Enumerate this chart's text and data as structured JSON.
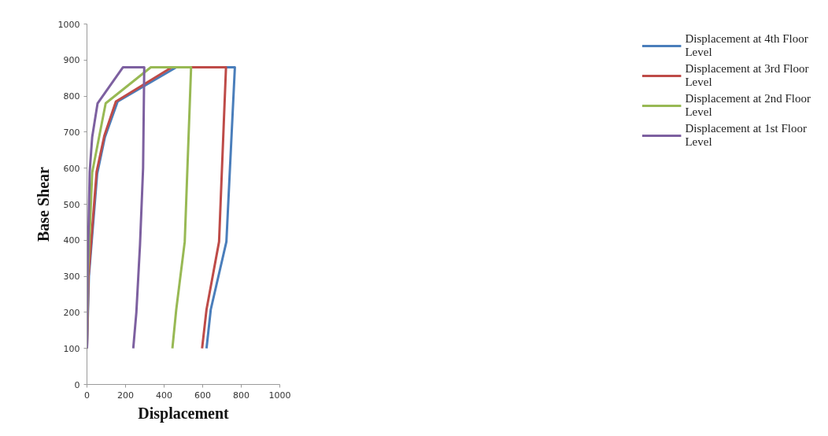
{
  "chart_data": {
    "type": "line",
    "xlabel": "Displacement",
    "ylabel": "Base Shear",
    "xlim": [
      0,
      1000
    ],
    "ylim": [
      0,
      1000
    ],
    "xticks": [
      0,
      200,
      400,
      600,
      800,
      1000
    ],
    "yticks": [
      0,
      100,
      200,
      300,
      400,
      500,
      600,
      700,
      800,
      900,
      1000
    ],
    "grid": false,
    "legend": "right",
    "marker": "none",
    "line_style": "solid",
    "series": [
      {
        "name": "Displacement at 4th Floor Level",
        "color": "#4a7ebb",
        "x": [
          0,
          10,
          53,
          93,
          159,
          463,
          767,
          723,
          642,
          620
        ],
        "values": [
          100,
          300,
          585,
          686,
          785,
          880,
          880,
          396,
          208,
          100
        ]
      },
      {
        "name": "Displacement at 3rd Floor Level",
        "color": "#be4b48",
        "x": [
          0,
          8,
          50,
          90,
          150,
          440,
          721,
          685,
          620,
          597
        ],
        "values": [
          100,
          300,
          590,
          690,
          785,
          880,
          880,
          396,
          208,
          100
        ]
      },
      {
        "name": "Displacement at 2nd Floor Level",
        "color": "#98b954",
        "x": [
          0,
          5,
          27,
          97,
          331,
          540,
          507,
          463,
          443
        ],
        "values": [
          100,
          300,
          588,
          780,
          880,
          880,
          396,
          208,
          100
        ]
      },
      {
        "name": "Displacement at 1st Floor Level",
        "color": "#7d60a0",
        "x": [
          0,
          3,
          14,
          27,
          55,
          187,
          297,
          291,
          275,
          256,
          240
        ],
        "values": [
          100,
          300,
          590,
          686,
          780,
          880,
          880,
          600,
          387,
          199,
          100
        ]
      }
    ]
  }
}
